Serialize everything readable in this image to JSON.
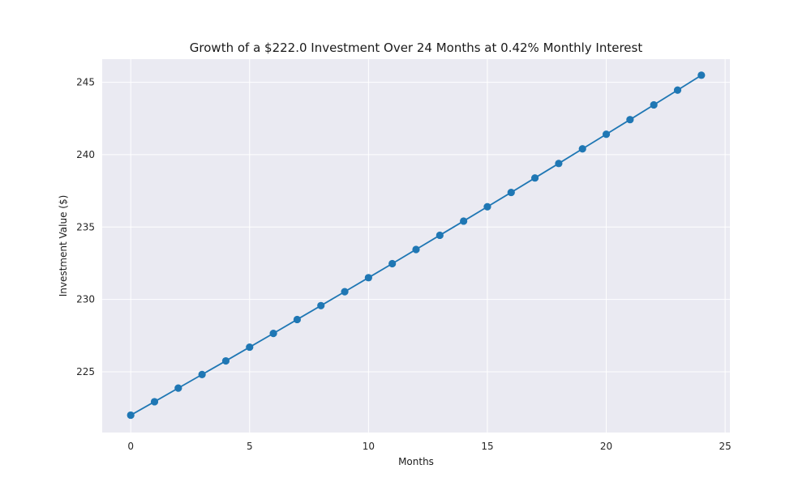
{
  "chart_data": {
    "type": "line",
    "title": "Growth of a $222.0 Investment Over 24 Months at 0.42% Monthly Interest",
    "xlabel": "Months",
    "ylabel": "Investment Value ($)",
    "xlim": [
      -1.2,
      25.2
    ],
    "ylim": [
      220.8,
      246.6
    ],
    "xticks": [
      0,
      5,
      10,
      15,
      20,
      25
    ],
    "yticks": [
      225,
      230,
      235,
      240,
      245
    ],
    "grid": true,
    "series": [
      {
        "name": "Investment Value",
        "color": "#1f77b4",
        "marker": "circle",
        "x": [
          0,
          1,
          2,
          3,
          4,
          5,
          6,
          7,
          8,
          9,
          10,
          11,
          12,
          13,
          14,
          15,
          16,
          17,
          18,
          19,
          20,
          21,
          22,
          23,
          24
        ],
        "values": [
          222.0,
          222.93,
          223.87,
          224.81,
          225.75,
          226.7,
          227.65,
          228.61,
          229.57,
          230.53,
          231.5,
          232.47,
          233.45,
          234.43,
          235.41,
          236.4,
          237.39,
          238.39,
          239.39,
          240.4,
          241.41,
          242.42,
          243.44,
          244.46,
          245.49
        ]
      }
    ],
    "colors": {
      "plot_background": "#eaeaf2",
      "grid": "#ffffff",
      "text": "#1a1a1a"
    }
  }
}
